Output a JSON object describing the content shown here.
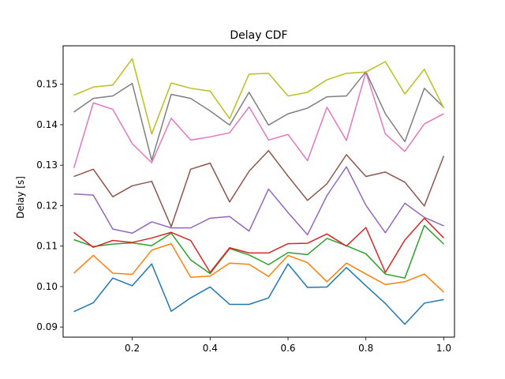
{
  "chart_data": {
    "type": "line",
    "title": "Delay CDF",
    "xlabel": "",
    "ylabel": "Delay [s]",
    "xlim": [
      0.0225,
      1.0275
    ],
    "ylim": [
      0.0875,
      0.1595
    ],
    "xticks": [
      0.2,
      0.4,
      0.6,
      0.8,
      1.0
    ],
    "xtick_labels": [
      "0.2",
      "0.4",
      "0.6",
      "0.8",
      "1.0"
    ],
    "yticks": [
      0.09,
      0.1,
      0.11,
      0.12,
      0.13,
      0.14,
      0.15
    ],
    "ytick_labels": [
      "0.09",
      "0.10",
      "0.11",
      "0.12",
      "0.13",
      "0.14",
      "0.15"
    ],
    "grid": false,
    "legend": false,
    "x": [
      0.05,
      0.1,
      0.15,
      0.2,
      0.25,
      0.3,
      0.35,
      0.4,
      0.45,
      0.5,
      0.55,
      0.6,
      0.65,
      0.7,
      0.75,
      0.8,
      0.85,
      0.9,
      0.95,
      1.0
    ],
    "series": [
      {
        "color": "#1f77b4",
        "values": [
          0.0938,
          0.096,
          0.1021,
          0.1002,
          0.1056,
          0.0939,
          0.0972,
          0.0999,
          0.0956,
          0.0956,
          0.0972,
          0.1056,
          0.0998,
          0.0999,
          0.1047,
          0.1002,
          0.0958,
          0.0907,
          0.0959,
          0.0968
        ]
      },
      {
        "color": "#ff7f0e",
        "values": [
          0.1033,
          0.1077,
          0.1033,
          0.103,
          0.109,
          0.1106,
          0.1023,
          0.1026,
          0.1058,
          0.1055,
          0.1025,
          0.1077,
          0.1059,
          0.1012,
          0.1058,
          0.1031,
          0.1005,
          0.1012,
          0.1031,
          0.0986
        ]
      },
      {
        "color": "#2ca02c",
        "values": [
          0.1116,
          0.1099,
          0.1105,
          0.1108,
          0.1101,
          0.1132,
          0.1066,
          0.1032,
          0.1094,
          0.1078,
          0.1054,
          0.1084,
          0.1079,
          0.1119,
          0.1101,
          0.1081,
          0.1031,
          0.1021,
          0.1151,
          0.1105
        ]
      },
      {
        "color": "#d62728",
        "values": [
          0.1134,
          0.1097,
          0.1114,
          0.1109,
          0.112,
          0.1134,
          0.1114,
          0.1035,
          0.1096,
          0.1083,
          0.1083,
          0.1106,
          0.1107,
          0.113,
          0.11,
          0.1146,
          0.1035,
          0.1115,
          0.1169,
          0.112
        ]
      },
      {
        "color": "#9467bd",
        "values": [
          0.1229,
          0.1226,
          0.1142,
          0.1132,
          0.116,
          0.1145,
          0.1145,
          0.1169,
          0.1173,
          0.1137,
          0.1241,
          0.1183,
          0.1128,
          0.1225,
          0.1296,
          0.1201,
          0.1133,
          0.1206,
          0.1171,
          0.115
        ]
      },
      {
        "color": "#8c564b",
        "values": [
          0.1272,
          0.129,
          0.1222,
          0.1249,
          0.126,
          0.1148,
          0.129,
          0.1305,
          0.1209,
          0.1285,
          0.1336,
          0.1273,
          0.1213,
          0.1254,
          0.1326,
          0.1272,
          0.1283,
          0.1258,
          0.1199,
          0.1323
        ]
      },
      {
        "color": "#e377c2",
        "values": [
          0.1293,
          0.1454,
          0.1438,
          0.1353,
          0.1306,
          0.1416,
          0.1362,
          0.137,
          0.138,
          0.1444,
          0.1362,
          0.1376,
          0.1311,
          0.1443,
          0.1361,
          0.153,
          0.1377,
          0.1334,
          0.1402,
          0.1427
        ]
      },
      {
        "color": "#7f7f7f",
        "values": [
          0.1431,
          0.1465,
          0.1471,
          0.1502,
          0.1312,
          0.1475,
          0.1465,
          0.1434,
          0.1399,
          0.148,
          0.1399,
          0.1427,
          0.1441,
          0.1469,
          0.1471,
          0.1531,
          0.1427,
          0.1358,
          0.149,
          0.1443
        ]
      },
      {
        "color": "#bcbd22",
        "values": [
          0.1473,
          0.1493,
          0.1498,
          0.1563,
          0.1377,
          0.1503,
          0.149,
          0.1483,
          0.1415,
          0.1525,
          0.1527,
          0.1471,
          0.148,
          0.1511,
          0.1527,
          0.153,
          0.1556,
          0.1476,
          0.1537,
          0.1441
        ]
      }
    ]
  }
}
